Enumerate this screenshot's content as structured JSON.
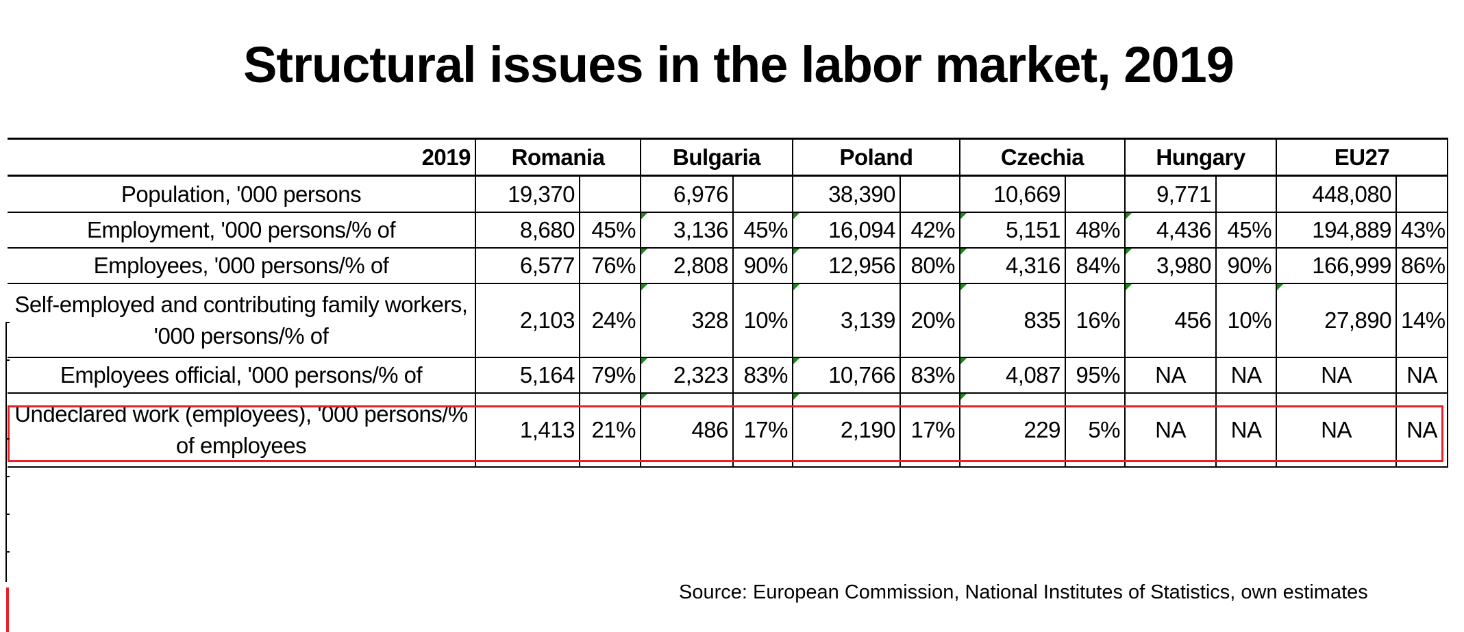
{
  "title": "Structural issues in the labor market, 2019",
  "header": {
    "year": "2019",
    "countries": [
      "Romania",
      "Bulgaria",
      "Poland",
      "Czechia",
      "Hungary",
      "EU27"
    ]
  },
  "rows": [
    {
      "label": "Population, '000 persons",
      "values": [
        [
          "19,370",
          ""
        ],
        [
          "6,976",
          ""
        ],
        [
          "38,390",
          ""
        ],
        [
          "10,669",
          ""
        ],
        [
          "9,771",
          ""
        ],
        [
          "448,080",
          ""
        ]
      ]
    },
    {
      "label": "Employment, '000 persons/% of",
      "values": [
        [
          "8,680",
          "45%"
        ],
        [
          "3,136",
          "45%"
        ],
        [
          "16,094",
          "42%"
        ],
        [
          "5,151",
          "48%"
        ],
        [
          "4,436",
          "45%"
        ],
        [
          "194,889",
          "43%"
        ]
      ]
    },
    {
      "label": "Employees, '000 persons/% of",
      "values": [
        [
          "6,577",
          "76%"
        ],
        [
          "2,808",
          "90%"
        ],
        [
          "12,956",
          "80%"
        ],
        [
          "4,316",
          "84%"
        ],
        [
          "3,980",
          "90%"
        ],
        [
          "166,999",
          "86%"
        ]
      ]
    },
    {
      "label": "Self-employed and contributing family workers, '000 persons/% of",
      "values": [
        [
          "2,103",
          "24%"
        ],
        [
          "328",
          "10%"
        ],
        [
          "3,139",
          "20%"
        ],
        [
          "835",
          "16%"
        ],
        [
          "456",
          "10%"
        ],
        [
          "27,890",
          "14%"
        ]
      ]
    },
    {
      "label": "Employees official, '000 persons/% of",
      "values": [
        [
          "5,164",
          "79%"
        ],
        [
          "2,323",
          "83%"
        ],
        [
          "10,766",
          "83%"
        ],
        [
          "4,087",
          "95%"
        ],
        [
          "NA",
          "NA"
        ],
        [
          "NA",
          "NA"
        ]
      ]
    },
    {
      "label": "Undeclared work (employees), '000 persons/% of employees",
      "values": [
        [
          "1,413",
          "21%"
        ],
        [
          "486",
          "17%"
        ],
        [
          "2,190",
          "17%"
        ],
        [
          "229",
          "5%"
        ],
        [
          "NA",
          "NA"
        ],
        [
          "NA",
          "NA"
        ]
      ]
    }
  ],
  "source": "Source: European Commission, National Institutes of Statistics, own estimates",
  "colors": {
    "highlight": "#e8202a",
    "indicator": "#1a8a1a"
  }
}
